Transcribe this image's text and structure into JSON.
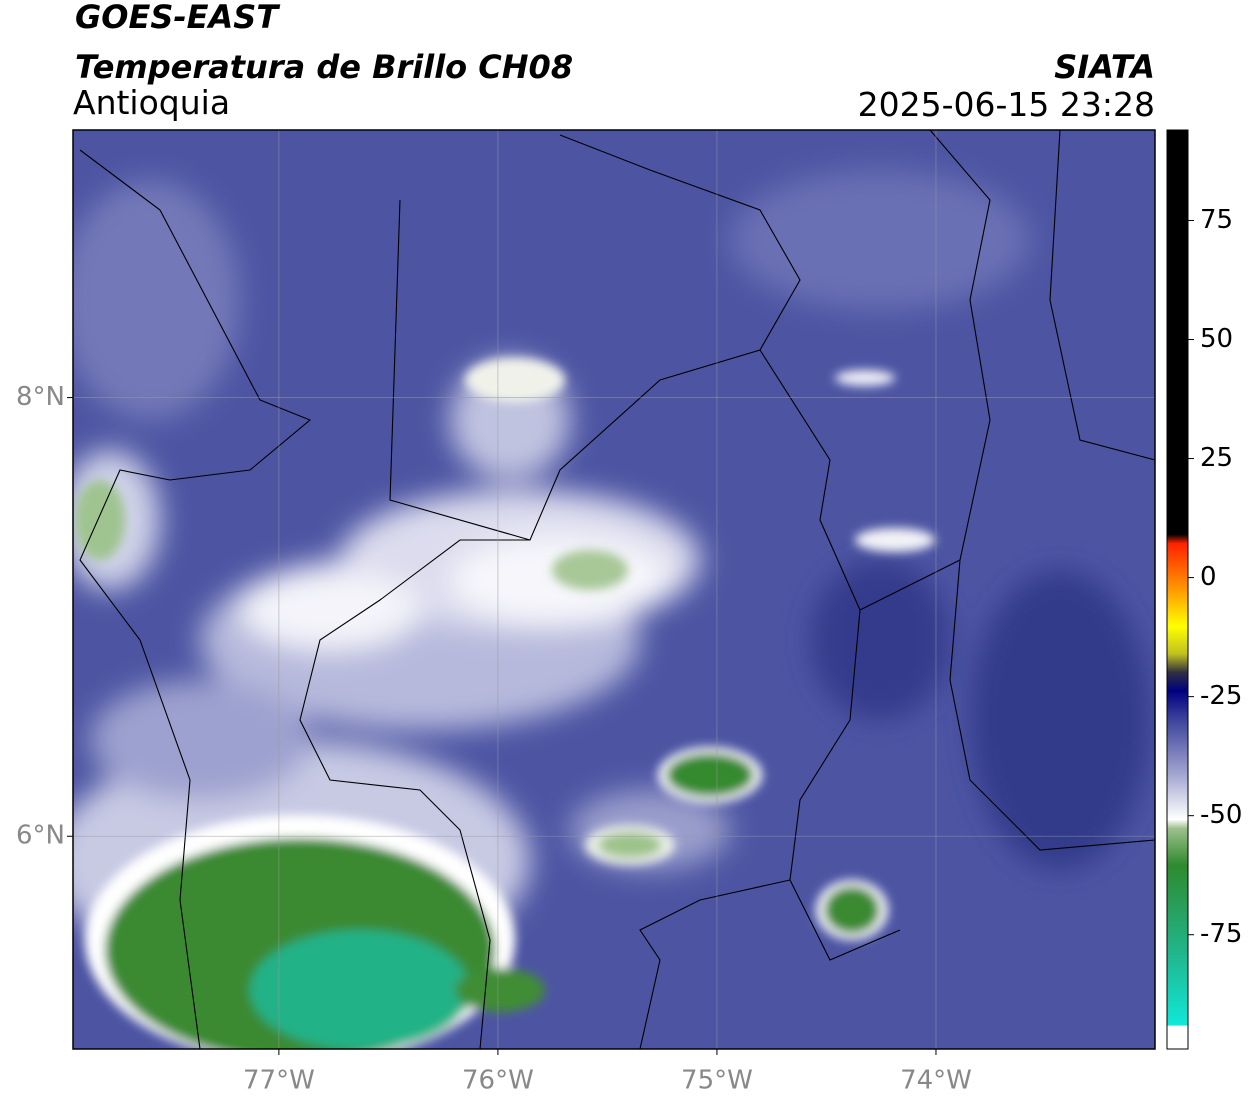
{
  "header": {
    "title": "GOES-EAST",
    "subtitle": "Temperatura de Brillo CH08",
    "region": "Antioquia",
    "agency": "SIATA",
    "timestamp": "2025-06-15 23:28"
  },
  "map": {
    "xlim": [
      -77.94,
      -73.0
    ],
    "ylim": [
      5.03,
      9.22
    ],
    "xticks": [
      {
        "value": -77,
        "label": "77°W"
      },
      {
        "value": -76,
        "label": "76°W"
      },
      {
        "value": -75,
        "label": "75°W"
      },
      {
        "value": -74,
        "label": "74°W"
      }
    ],
    "yticks": [
      {
        "value": 8,
        "label": "8°N"
      },
      {
        "value": 6,
        "label": "6°N"
      }
    ],
    "grid": true
  },
  "colorbar": {
    "lim": [
      -99,
      94
    ],
    "ticks": [
      75,
      50,
      25,
      0,
      -25,
      -50,
      -75
    ]
  }
}
